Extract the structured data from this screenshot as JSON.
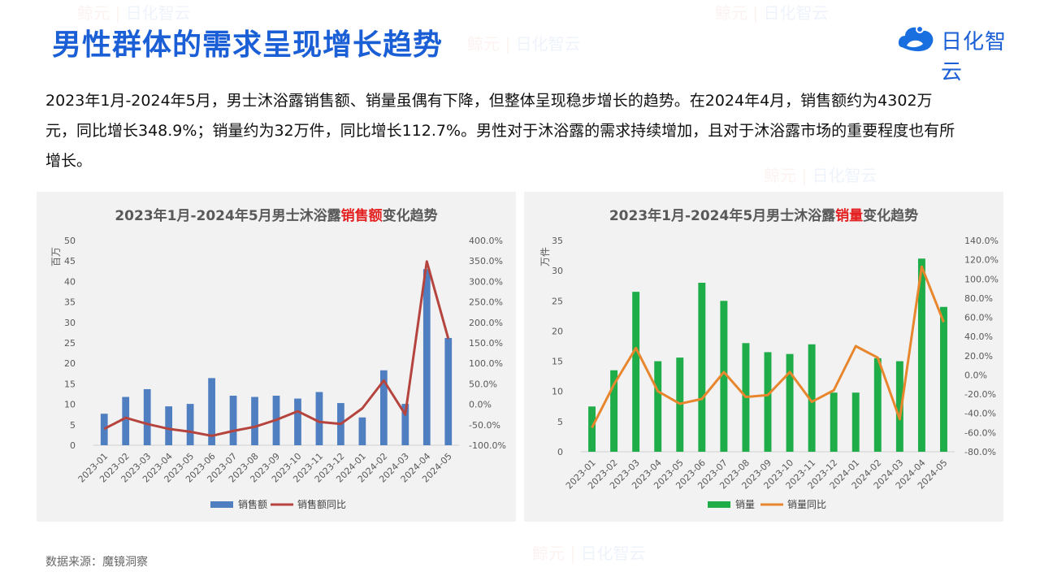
{
  "slide": {
    "title": "男性群体的需求呈现增长趋势",
    "logo_text": "日化智云",
    "paragraph": "2023年1月-2024年5月，男士沐浴露销售额、销量虽偶有下降，但整体呈现稳步增长的趋势。在2024年4月，销售额约为4302万元，同比增长348.9%；销量约为32万件，同比增长112.7%。男性对于沐浴露的需求持续增加，且对于沐浴露市场的重要程度也有所增长。",
    "source": "数据来源：魔镜洞察",
    "watermark_left": "鲸元",
    "watermark_right": "日化智云"
  },
  "colors": {
    "title_blue": "#1a5fd6",
    "panel_bg": "#f2f2f2",
    "sales_bar": "#4f7fc1",
    "sales_line": "#b5443e",
    "volume_bar": "#1fad4a",
    "volume_line": "#e8862e",
    "highlight_red": "#e41f1f"
  },
  "chart_data": [
    {
      "type": "bar",
      "title": "2023年1月-2024年5月男士沐浴露销售额变化趋势",
      "title_parts": [
        "2023年1月-2024年5月男士沐浴露",
        "销售额",
        "变化趋势"
      ],
      "ylabel": "百万",
      "categories": [
        "2023-01",
        "2023-02",
        "2023-03",
        "2023-04",
        "2023-05",
        "2023-06",
        "2023-07",
        "2023-08",
        "2023-09",
        "2023-10",
        "2023-11",
        "2023-12",
        "2024-01",
        "2024-02",
        "2024-03",
        "2024-04",
        "2024-05"
      ],
      "ylim": [
        0,
        50
      ],
      "yticks": [
        0,
        5,
        10,
        15,
        20,
        25,
        30,
        35,
        40,
        45,
        50
      ],
      "y2lim": [
        -100,
        400
      ],
      "y2ticks": [
        "-100.0%",
        "-50.0%",
        "0.0%",
        "50.0%",
        "100.0%",
        "150.0%",
        "200.0%",
        "250.0%",
        "300.0%",
        "350.0%",
        "400.0%"
      ],
      "series": [
        {
          "name": "销售额",
          "kind": "bar",
          "axis": "left",
          "values": [
            7.7,
            11.8,
            13.7,
            9.5,
            10.1,
            16.4,
            12.1,
            11.8,
            12.1,
            11.4,
            13.0,
            10.3,
            6.8,
            18.3,
            10.1,
            43.0,
            26.2
          ]
        },
        {
          "name": "销售额同比",
          "kind": "line",
          "axis": "right",
          "values": [
            -60,
            -33,
            -48,
            -60,
            -67,
            -77,
            -65,
            -55,
            -38,
            -17,
            -43,
            -48,
            -10,
            58,
            -25,
            348.9,
            160
          ]
        }
      ],
      "legend": "bottom",
      "grid": false
    },
    {
      "type": "bar",
      "title": "2023年1月-2024年5月男士沐浴露销量变化趋势",
      "title_parts": [
        "2023年1月-2024年5月男士沐浴露",
        "销量",
        "变化趋势"
      ],
      "ylabel": "万件",
      "categories": [
        "2023-01",
        "2023-02",
        "2023-03",
        "2023-04",
        "2023-05",
        "2023-06",
        "2023-07",
        "2023-08",
        "2023-09",
        "2023-10",
        "2023-11",
        "2023-12",
        "2024-01",
        "2024-02",
        "2024-03",
        "2024-04",
        "2024-05"
      ],
      "ylim": [
        0,
        35
      ],
      "yticks": [
        0,
        5,
        10,
        15,
        20,
        25,
        30,
        35
      ],
      "y2lim": [
        -80,
        140
      ],
      "y2ticks": [
        "-80.0%",
        "-60.0%",
        "-40.0%",
        "-20.0%",
        "0.0%",
        "20.0%",
        "40.0%",
        "60.0%",
        "80.0%",
        "100.0%",
        "120.0%",
        "140.0%"
      ],
      "series": [
        {
          "name": "销量",
          "kind": "bar",
          "axis": "left",
          "values": [
            7.5,
            13.5,
            26.5,
            15.0,
            15.6,
            28.0,
            25.0,
            18.0,
            16.5,
            16.2,
            17.8,
            9.8,
            9.8,
            15.5,
            15.0,
            32.0,
            24.0
          ]
        },
        {
          "name": "销量同比",
          "kind": "line",
          "axis": "right",
          "values": [
            -55,
            -10,
            28,
            -17,
            -30,
            -25,
            3,
            -23,
            -21,
            3,
            -28,
            -16,
            30,
            18,
            -46,
            112.7,
            55
          ]
        }
      ],
      "legend": "bottom",
      "grid": false
    }
  ]
}
